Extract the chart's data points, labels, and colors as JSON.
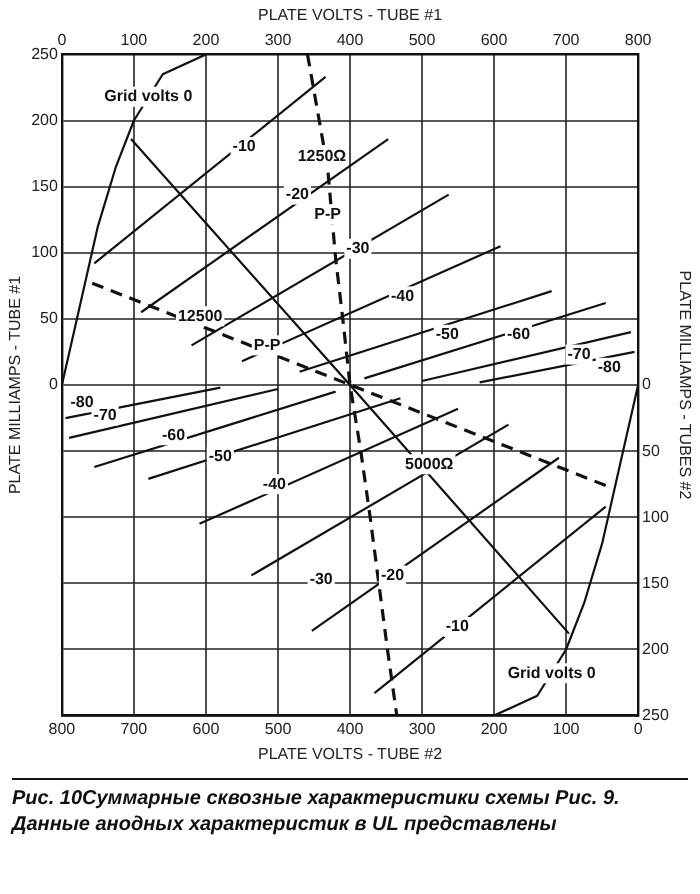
{
  "chart_data": {
    "type": "line",
    "xlabel": "PLATE VOLTS - TUBE #2",
    "x2label": "PLATE VOLTS - TUBE #1",
    "ylabel": "PLATE MILLIAMPS - TUBE #1",
    "y2label": "PLATE MILLIAMPS - TUBES #2",
    "xlim": [
      800,
      0
    ],
    "xticks": [
      800,
      700,
      600,
      500,
      400,
      300,
      200,
      100,
      0
    ],
    "x2lim": [
      0,
      800
    ],
    "x2ticks": [
      0,
      100,
      200,
      300,
      400,
      500,
      600,
      700,
      800
    ],
    "ylim": [
      -250,
      250
    ],
    "yticks": [
      {
        "value": -250,
        "label": null
      },
      {
        "value": -200,
        "label": null
      },
      {
        "value": -150,
        "label": null
      },
      {
        "value": -100,
        "label": null
      },
      {
        "value": -50,
        "label": null
      },
      0,
      50,
      100,
      150,
      200,
      250
    ],
    "y2lim": [
      250,
      -250
    ],
    "y2ticks": [
      0,
      50,
      100,
      150,
      200,
      250
    ],
    "grid": true,
    "marker": "none",
    "line_style": "solid",
    "series": [
      {
        "color": "#111111",
        "x": [
          800,
          775,
          750,
          725,
          700,
          660,
          600
        ],
        "values": [
          0,
          60,
          120,
          165,
          200,
          235,
          250
        ]
      },
      {
        "color": "#111111",
        "x": [
          0,
          25,
          50,
          75,
          100,
          140,
          200
        ],
        "values": [
          0,
          -60,
          -120,
          -165,
          -200,
          -235,
          -250
        ]
      },
      {
        "color": "#111111",
        "x": [
          755,
          434
        ],
        "values": [
          92,
          233
        ]
      },
      {
        "color": "#111111",
        "x": [
          690,
          347
        ],
        "values": [
          55,
          186
        ]
      },
      {
        "color": "#111111",
        "x": [
          620,
          263
        ],
        "values": [
          30,
          144
        ]
      },
      {
        "color": "#111111",
        "x": [
          550,
          191
        ],
        "values": [
          18,
          105
        ]
      },
      {
        "color": "#111111",
        "x": [
          470,
          120
        ],
        "values": [
          10,
          71
        ]
      },
      {
        "color": "#111111",
        "x": [
          380,
          45
        ],
        "values": [
          5,
          62
        ]
      },
      {
        "color": "#111111",
        "x": [
          300,
          10
        ],
        "values": [
          3,
          40
        ]
      },
      {
        "color": "#111111",
        "x": [
          220,
          5
        ],
        "values": [
          2,
          25
        ]
      },
      {
        "color": "#111111",
        "x": [
          45,
          366
        ],
        "values": [
          -92,
          -233
        ]
      },
      {
        "color": "#111111",
        "x": [
          110,
          453
        ],
        "values": [
          -55,
          -186
        ]
      },
      {
        "color": "#111111",
        "x": [
          180,
          537
        ],
        "values": [
          -30,
          -144
        ]
      },
      {
        "color": "#111111",
        "x": [
          250,
          609
        ],
        "values": [
          -18,
          -105
        ]
      },
      {
        "color": "#111111",
        "x": [
          330,
          680
        ],
        "values": [
          -10,
          -71
        ]
      },
      {
        "color": "#111111",
        "x": [
          420,
          755
        ],
        "values": [
          -5,
          -62
        ]
      },
      {
        "color": "#111111",
        "x": [
          500,
          790
        ],
        "values": [
          -3,
          -40
        ]
      },
      {
        "color": "#111111",
        "x": [
          580,
          795
        ],
        "values": [
          -2,
          -25
        ]
      },
      {
        "color": "#111111",
        "x": [
          704,
          400,
          96
        ],
        "values": [
          186,
          0,
          -188
        ]
      },
      {
        "color": "#111111",
        "line_style": "dashed",
        "x": [
          459,
          431,
          420,
          410,
          400,
          385,
          372,
          360,
          348,
          335
        ],
        "values": [
          250,
          164,
          96,
          50,
          0,
          -50,
          -100,
          -150,
          -200,
          -250
        ]
      },
      {
        "color": "#111111",
        "line_style": "dashed",
        "x": [
          758,
          45
        ],
        "values": [
          77,
          -76
        ]
      }
    ],
    "annotations": [
      {
        "text": "Grid volts 0",
        "x": 680,
        "y": 218
      },
      {
        "text": "Grid volts 0",
        "x": 120,
        "y": -218
      },
      {
        "text": "-10",
        "x": 547,
        "y": 180
      },
      {
        "text": "-20",
        "x": 473,
        "y": 144
      },
      {
        "text": "-30",
        "x": 389,
        "y": 103
      },
      {
        "text": "-40",
        "x": 327,
        "y": 67
      },
      {
        "text": "-50",
        "x": 265,
        "y": 38
      },
      {
        "text": "-60",
        "x": 166,
        "y": 38
      },
      {
        "text": "-70",
        "x": 82,
        "y": 23
      },
      {
        "text": "-80",
        "x": 40,
        "y": 13
      },
      {
        "text": "-80",
        "x": 772,
        "y": -13
      },
      {
        "text": "-70",
        "x": 740,
        "y": -23
      },
      {
        "text": "-60",
        "x": 645,
        "y": -38
      },
      {
        "text": "-50",
        "x": 580,
        "y": -54
      },
      {
        "text": "-40",
        "x": 505,
        "y": -75
      },
      {
        "text": "-30",
        "x": 440,
        "y": -147
      },
      {
        "text": "-20",
        "x": 341,
        "y": -144
      },
      {
        "text": "-10",
        "x": 251,
        "y": -183
      },
      {
        "text": "5000Ω",
        "x": 290,
        "y": -60
      },
      {
        "text": "1250Ω",
        "x": 439,
        "y": 173
      },
      {
        "text": "P-P",
        "x": 431,
        "y": 129
      },
      {
        "text": "12500",
        "x": 608,
        "y": 52
      },
      {
        "text": "P-P",
        "x": 515,
        "y": 30
      },
      "Рис. 10Суммарные сквозные характеристики схемы Рис. 9. Данные анодных характеристик в UL представлены"
    ]
  }
}
